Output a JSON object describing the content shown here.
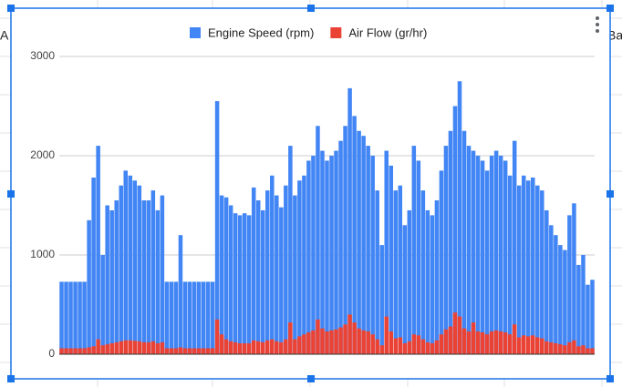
{
  "sheet_cells": [
    "A",
    "Ba"
  ],
  "chart_data": {
    "type": "bar",
    "legend": "top",
    "grid": true,
    "categories": [
      null,
      null,
      null,
      null,
      null,
      null,
      null,
      null,
      null,
      null,
      null,
      null,
      null,
      null,
      null,
      null,
      null,
      null,
      null,
      null,
      null,
      null,
      null,
      null,
      null,
      null,
      null,
      null,
      null,
      null,
      null,
      null,
      null,
      null,
      null,
      null,
      null,
      null,
      null,
      null,
      null,
      null,
      null,
      null,
      null,
      null,
      null,
      null,
      null,
      null,
      null,
      null,
      null,
      null,
      null,
      null,
      null,
      null,
      null,
      null,
      null,
      null,
      null,
      null,
      null,
      null,
      null,
      null,
      null,
      null,
      null,
      null,
      null,
      null,
      null,
      null,
      null,
      null,
      null,
      null,
      null,
      null,
      null,
      null,
      null,
      null,
      null,
      null,
      null,
      null,
      null,
      null,
      null,
      null,
      null,
      null,
      null,
      null,
      null,
      null,
      null,
      null,
      null,
      null,
      null,
      null,
      null,
      null,
      null,
      null,
      null,
      null,
      null,
      null,
      null,
      null,
      null
    ],
    "series": [
      {
        "name": "Engine Speed (rpm)",
        "color": "#4285f4",
        "values": [
          730,
          730,
          730,
          730,
          730,
          730,
          1350,
          1780,
          2100,
          1000,
          1500,
          1450,
          1550,
          1700,
          1850,
          1800,
          1750,
          1700,
          1550,
          1550,
          1650,
          1450,
          1600,
          730,
          730,
          730,
          1200,
          730,
          730,
          730,
          730,
          730,
          730,
          730,
          2550,
          1600,
          1580,
          1500,
          1420,
          1400,
          1420,
          1400,
          1680,
          1550,
          1450,
          1650,
          1800,
          1600,
          1480,
          1700,
          2100,
          1600,
          1750,
          1800,
          1950,
          2000,
          2300,
          2050,
          1950,
          2000,
          2050,
          2150,
          2300,
          2680,
          2400,
          2250,
          2200,
          2100,
          2000,
          1650,
          1100,
          2050,
          1900,
          1650,
          1700,
          1300,
          1450,
          2100,
          1950,
          1650,
          1450,
          1400,
          1550,
          1850,
          2100,
          2250,
          2500,
          2750,
          2250,
          2100,
          2050,
          2000,
          1950,
          1850,
          2000,
          2050,
          2000,
          1950,
          1800,
          2150,
          1700,
          1800,
          1750,
          1780,
          1700,
          1650,
          1450,
          1300,
          1200,
          1100,
          1050,
          1400,
          1520,
          900,
          1000,
          700,
          750
        ]
      },
      {
        "name": "Air Flow (gr/hr)",
        "color": "#ea4335",
        "values": [
          60,
          60,
          60,
          60,
          60,
          60,
          70,
          80,
          150,
          90,
          100,
          110,
          120,
          130,
          140,
          140,
          135,
          130,
          120,
          120,
          130,
          110,
          120,
          60,
          60,
          60,
          70,
          60,
          60,
          60,
          60,
          60,
          60,
          60,
          350,
          200,
          150,
          130,
          120,
          110,
          110,
          110,
          140,
          130,
          120,
          140,
          150,
          130,
          120,
          150,
          320,
          150,
          180,
          200,
          220,
          240,
          350,
          260,
          230,
          240,
          250,
          270,
          300,
          400,
          320,
          260,
          240,
          230,
          200,
          150,
          90,
          380,
          230,
          160,
          170,
          110,
          130,
          200,
          190,
          150,
          120,
          110,
          140,
          200,
          250,
          280,
          420,
          380,
          260,
          230,
          320,
          230,
          220,
          200,
          230,
          240,
          230,
          220,
          200,
          300,
          170,
          190,
          180,
          190,
          170,
          160,
          130,
          120,
          110,
          100,
          90,
          120,
          140,
          80,
          90,
          60,
          60
        ]
      }
    ],
    "ylim": [
      0,
      3000
    ],
    "yticks": [
      0,
      1000,
      2000,
      3000
    ]
  }
}
